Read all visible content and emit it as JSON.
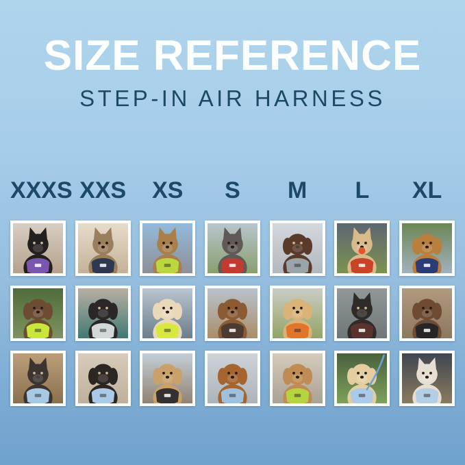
{
  "page": {
    "title": "SIZE REFERENCE",
    "subtitle": "STEP-IN AIR HARNESS"
  },
  "colors": {
    "background_top": "#b0d4ec",
    "background_bottom": "#6fa2ce",
    "title_text": "#fdfefe",
    "teal_text": "#1c4a66",
    "photo_frame": "#fcfdfe"
  },
  "sizes": [
    "XXXS",
    "XXS",
    "XS",
    "S",
    "M",
    "L",
    "XL"
  ],
  "photo_grid": {
    "rows": [
      {
        "cells": [
          {
            "size": "XXXS",
            "animal": "black kitten",
            "species": "cat",
            "ears": "pointy",
            "fur": "#24201f",
            "harness_color": "#7a57ae",
            "bg_top": "#d7cec3",
            "bg_bottom": "#b5a28c",
            "setting": "indoor hallway"
          },
          {
            "size": "XXS",
            "animal": "bengal tabby cat",
            "species": "cat",
            "ears": "pointy",
            "fur": "#9a7f5c",
            "harness_color": "#2e3853",
            "bg_top": "#e6dccb",
            "bg_bottom": "#c4b297",
            "setting": "window with tan curtains"
          },
          {
            "size": "XS",
            "animal": "bengal cat",
            "species": "cat",
            "ears": "pointy",
            "fur": "#a97f4c",
            "harness_color": "#bcd63f",
            "bg_top": "#93bbdc",
            "bg_bottom": "#8e8f97",
            "setting": "car back seat"
          },
          {
            "size": "S",
            "animal": "grey french bulldog",
            "species": "dog",
            "ears": "pointy",
            "fur": "#605957",
            "harness_color": "#c23a30",
            "bg_top": "#b9c5cd",
            "bg_bottom": "#88a06d",
            "setting": "street and grass"
          },
          {
            "size": "M",
            "animal": "chocolate long-haired dachshund",
            "species": "dog",
            "ears": "floppy",
            "fur": "#5a3a2a",
            "harness_color": "#9aa4ab",
            "bg_top": "#d3d8de",
            "bg_bottom": "#b2b8bf",
            "setting": "sidewalk"
          },
          {
            "size": "L",
            "animal": "cream shiba inu with ball",
            "species": "dog",
            "ears": "pointy",
            "fur": "#d9ba8b",
            "harness_color": "#cb4327",
            "accessory": "ball",
            "accessory_color": "#e0582e",
            "bg_top": "#5d6671",
            "bg_bottom": "#7c9251",
            "setting": "field under stormy sky"
          },
          {
            "size": "XL",
            "animal": "golden retriever",
            "species": "dog",
            "ears": "floppy",
            "fur": "#b97f3e",
            "harness_color": "#2a3d77",
            "bg_top": "#6d8656",
            "bg_bottom": "#a2b1bd",
            "setting": "garden path with yellow flowers"
          }
        ]
      },
      {
        "cells": [
          {
            "size": "XXXS",
            "animal": "wirehaired dachshund puppy",
            "species": "dog",
            "ears": "floppy",
            "fur": "#6d4c34",
            "harness_color": "#c9e63b",
            "bg_top": "#4f6c3b",
            "bg_bottom": "#7e9261",
            "setting": "garden greenery"
          },
          {
            "size": "XXS",
            "animal": "black puppy",
            "species": "dog",
            "ears": "floppy",
            "fur": "#2b2627",
            "harness_color": "#d2d7d9",
            "bg_top": "#b9aea3",
            "bg_bottom": "#3f7a74",
            "setting": "car seat with teal blanket"
          },
          {
            "size": "XS",
            "animal": "cream spaniel",
            "species": "dog",
            "ears": "floppy",
            "fur": "#e9d8ba",
            "harness_color": "#d8e83d",
            "bg_top": "#bac6d1",
            "bg_bottom": "#6b7d8b",
            "setting": "boat deck"
          },
          {
            "size": "S",
            "animal": "brown dachshund",
            "species": "dog",
            "ears": "floppy",
            "fur": "#8c5b34",
            "harness_color": "#4b3b31",
            "bg_top": "#b7c3cd",
            "bg_bottom": "#ab8d69",
            "setting": "wooden dock by water"
          },
          {
            "size": "M",
            "animal": "golden retriever puppy",
            "species": "dog",
            "ears": "floppy",
            "fur": "#dab379",
            "harness_color": "#e2752a",
            "bg_top": "#cbcdc5",
            "bg_bottom": "#91a465",
            "setting": "sunny patio"
          },
          {
            "size": "L",
            "animal": "black and tan shepherd mix",
            "species": "dog",
            "ears": "pointy",
            "fur": "#2f2b29",
            "harness_color": "#5a332d",
            "bg_top": "#909899",
            "bg_bottom": "#6e7678",
            "setting": "corrugated metal tunnel"
          },
          {
            "size": "XL",
            "animal": "brown and white collie mix",
            "species": "dog",
            "ears": "floppy",
            "fur": "#6f4b34",
            "harness_color": "#282529",
            "bg_top": "#b19b7f",
            "bg_bottom": "#8d775d",
            "setting": "wooden steps"
          }
        ]
      },
      {
        "cells": [
          {
            "size": "XXXS",
            "animal": "yorkshire terrier puppy",
            "species": "dog",
            "ears": "pointy",
            "fur": "#3b3431",
            "harness_color": "#a9c9e3",
            "bg_top": "#ba9f79",
            "bg_bottom": "#8b704f",
            "setting": "sunny gravel path"
          },
          {
            "size": "XXS",
            "animal": "black and tan dachshund puppy",
            "species": "dog",
            "ears": "floppy",
            "fur": "#2c2725",
            "harness_color": "#aacae5",
            "bg_top": "#d7ccba",
            "bg_bottom": "#beb19b",
            "setting": "living room sofa"
          },
          {
            "size": "XS",
            "animal": "apricot poodle puppy",
            "species": "dog",
            "ears": "floppy",
            "fur": "#caa169",
            "harness_color": "#343130",
            "bg_top": "#c4ced7",
            "bg_bottom": "#908374",
            "setting": "boardwalk by the sea"
          },
          {
            "size": "S",
            "animal": "red dachshund",
            "species": "dog",
            "ears": "floppy",
            "fur": "#a6642f",
            "harness_color": "#a0c1dd",
            "bg_top": "#ced4d9",
            "bg_bottom": "#abb3b9",
            "setting": "concrete patio"
          },
          {
            "size": "M",
            "animal": "apricot goldendoodle",
            "species": "dog",
            "ears": "floppy",
            "fur": "#c18c53",
            "harness_color": "#b5d440",
            "bg_top": "#d4cbbc",
            "bg_bottom": "#a9a395",
            "setting": "sidewalk"
          },
          {
            "size": "L",
            "animal": "cream golden retriever puppy",
            "species": "dog",
            "ears": "floppy",
            "fur": "#e4cea1",
            "harness_color": "#aacae7",
            "leash_color": "#70a0d9",
            "bg_top": "#4a613d",
            "bg_bottom": "#7ea15b",
            "setting": "lawn with trees"
          },
          {
            "size": "XL",
            "animal": "white shepherd",
            "species": "dog",
            "ears": "pointy",
            "fur": "#e5dfd3",
            "harness_color": "#b4cee5",
            "bg_top": "#3f4551",
            "bg_bottom": "#8b7b5f",
            "setting": "city street at night"
          }
        ]
      }
    ]
  }
}
